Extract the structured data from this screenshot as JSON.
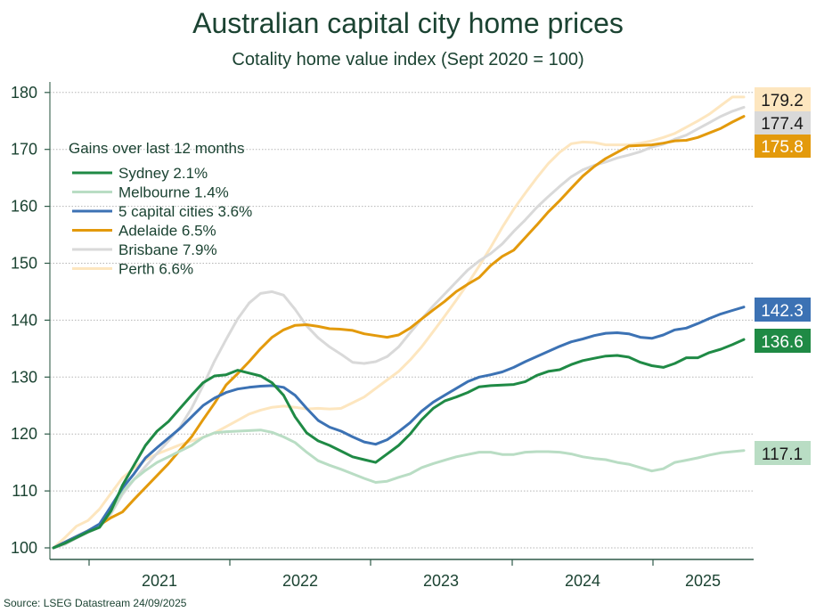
{
  "title": "Australian capital city home prices",
  "subtitle": "Cotality home value index (Sept 2020 = 100)",
  "source": "Source: LSEG Datastream 24/09/2025",
  "chart_data": {
    "type": "line",
    "title": "Australian capital city home prices",
    "subtitle": "Cotality home value index (Sept 2020 = 100)",
    "xlabel": "",
    "ylabel": "",
    "ylim": [
      100,
      180
    ],
    "yticks": [
      100,
      110,
      120,
      130,
      140,
      150,
      160,
      170,
      180
    ],
    "xticks": [
      "2021",
      "2022",
      "2023",
      "2024",
      "2025"
    ],
    "x_start": "2020-09",
    "x_end": "2025-08",
    "frequency": "monthly",
    "grid": "horizontal dotted",
    "legend": {
      "title": "Gains over last 12 months",
      "placement": "top-left"
    },
    "series": [
      {
        "name": "Sydney",
        "legend_label": "Sydney 2.1%",
        "color": "#1f8a45",
        "end_value": "136.6",
        "label_text_color": "#ffffff",
        "values": [
          100,
          100.8,
          101.8,
          102.8,
          103.6,
          106.5,
          111,
          114.5,
          118,
          120.5,
          122.2,
          124.5,
          126.8,
          129,
          130.2,
          130.4,
          131.2,
          130.7,
          130.2,
          129,
          126.8,
          123,
          120.2,
          118.8,
          118,
          117,
          116,
          115.5,
          115,
          116.5,
          118,
          120,
          122.5,
          124.5,
          125.8,
          126.5,
          127.3,
          128.3,
          128.5,
          128.6,
          128.7,
          129.2,
          130.3,
          131,
          131.3,
          132.2,
          132.9,
          133.3,
          133.7,
          133.8,
          133.5,
          132.6,
          132,
          131.7,
          132.4,
          133.4,
          133.4,
          134.3,
          134.9,
          135.7,
          136.6
        ]
      },
      {
        "name": "Melbourne",
        "legend_label": "Melbourne 1.4%",
        "color": "#b9ddc4",
        "end_value": "117.1",
        "label_text_color": "#1b1b1b",
        "values": [
          100,
          100.9,
          101.9,
          102.9,
          103.8,
          106.3,
          109.8,
          112,
          113.6,
          115,
          116,
          117,
          118,
          119.4,
          120.2,
          120.4,
          120.5,
          120.6,
          120.7,
          120.3,
          119.5,
          118.5,
          116.8,
          115.3,
          114.5,
          113.8,
          113,
          112.2,
          111.5,
          111.7,
          112.4,
          113,
          114.1,
          114.8,
          115.4,
          116,
          116.4,
          116.8,
          116.8,
          116.4,
          116.4,
          116.8,
          116.9,
          116.9,
          116.8,
          116.5,
          116,
          115.7,
          115.5,
          115,
          114.7,
          114.1,
          113.5,
          113.9,
          115,
          115.4,
          115.8,
          116.3,
          116.7,
          116.9,
          117.1
        ]
      },
      {
        "name": "5 capital cities",
        "legend_label": "5 capital cities 3.6%",
        "color": "#3c72b4",
        "end_value": "142.3",
        "label_text_color": "#ffffff",
        "values": [
          100,
          101,
          102,
          103,
          104.2,
          107.3,
          110.5,
          113,
          115.8,
          117.6,
          119.3,
          121,
          123,
          125,
          126.3,
          127.3,
          127.9,
          128.2,
          128.4,
          128.5,
          128.2,
          126.8,
          124.5,
          122.4,
          121.2,
          120.5,
          119.5,
          118.6,
          118.2,
          119,
          120.4,
          122,
          124,
          125.6,
          126.8,
          128,
          129.2,
          130,
          130.4,
          130.9,
          131.7,
          132.7,
          133.6,
          134.5,
          135.4,
          136.2,
          136.7,
          137.3,
          137.7,
          137.8,
          137.6,
          137,
          136.8,
          137.4,
          138.3,
          138.6,
          139.4,
          140.3,
          141.1,
          141.7,
          142.3
        ]
      },
      {
        "name": "Adelaide",
        "legend_label": "Adelaide 6.5%",
        "color": "#e39a0c",
        "end_value": "175.8",
        "label_text_color": "#ffffff",
        "values": [
          100,
          101,
          102,
          103,
          104,
          105.3,
          106.3,
          108.5,
          110.6,
          112.7,
          114.8,
          117.2,
          119.5,
          122.5,
          125.4,
          128.6,
          130.6,
          132.7,
          135,
          137,
          138.3,
          139.1,
          139.2,
          138.9,
          138.5,
          138.4,
          138.2,
          137.6,
          137.3,
          137,
          137.4,
          138.6,
          140.2,
          141.8,
          143.3,
          145,
          146.3,
          147.5,
          149.6,
          151.2,
          152.3,
          154.5,
          156.7,
          159,
          161,
          163.2,
          165.3,
          167,
          168.4,
          169.5,
          170.6,
          170.7,
          170.8,
          171.1,
          171.5,
          171.6,
          172.1,
          172.9,
          173.7,
          174.8,
          175.8
        ]
      },
      {
        "name": "Brisbane",
        "legend_label": "Brisbane 7.9%",
        "color": "#d9d9d9",
        "end_value": "177.4",
        "label_text_color": "#1b1b1b",
        "values": [
          100,
          100.6,
          101.7,
          102.7,
          103.6,
          106,
          109.4,
          112,
          114.3,
          116.6,
          118.8,
          121.2,
          124.5,
          128.5,
          132.8,
          136.6,
          140.2,
          143,
          144.7,
          145,
          144.4,
          141.9,
          139,
          136.9,
          135.3,
          134,
          132.6,
          132.4,
          132.7,
          133.6,
          135.3,
          137.8,
          140.2,
          142.5,
          144.6,
          146.7,
          148.8,
          150.4,
          151.7,
          153.4,
          155.6,
          157.6,
          159.8,
          161.7,
          163.5,
          165.2,
          166.4,
          167.2,
          167.8,
          168.5,
          169,
          169.6,
          170.4,
          170.9,
          171.8,
          172.5,
          173.6,
          174.7,
          175.8,
          176.7,
          177.4
        ]
      },
      {
        "name": "Perth",
        "legend_label": "Perth 6.6%",
        "color": "#fde6bf",
        "end_value": "179.2",
        "label_text_color": "#1b1b1b",
        "values": [
          100,
          101.8,
          103.8,
          104.8,
          106.8,
          109.6,
          112.3,
          114,
          115.5,
          116.5,
          117.3,
          118.1,
          118.8,
          119.4,
          120.2,
          121.3,
          122.4,
          123.5,
          124.2,
          124.7,
          124.9,
          124.7,
          124.4,
          124.5,
          124.4,
          124.5,
          125.5,
          126.5,
          128,
          129.5,
          131,
          133,
          135.3,
          138,
          140.7,
          143.5,
          146.4,
          149.5,
          152.8,
          156.3,
          159.5,
          162.3,
          165,
          167.5,
          169.5,
          171,
          171.3,
          171.2,
          170.8,
          170.8,
          170.8,
          171.1,
          171.5,
          172.1,
          172.8,
          173.9,
          175,
          176.2,
          177.7,
          179.2,
          179.2
        ]
      }
    ]
  }
}
